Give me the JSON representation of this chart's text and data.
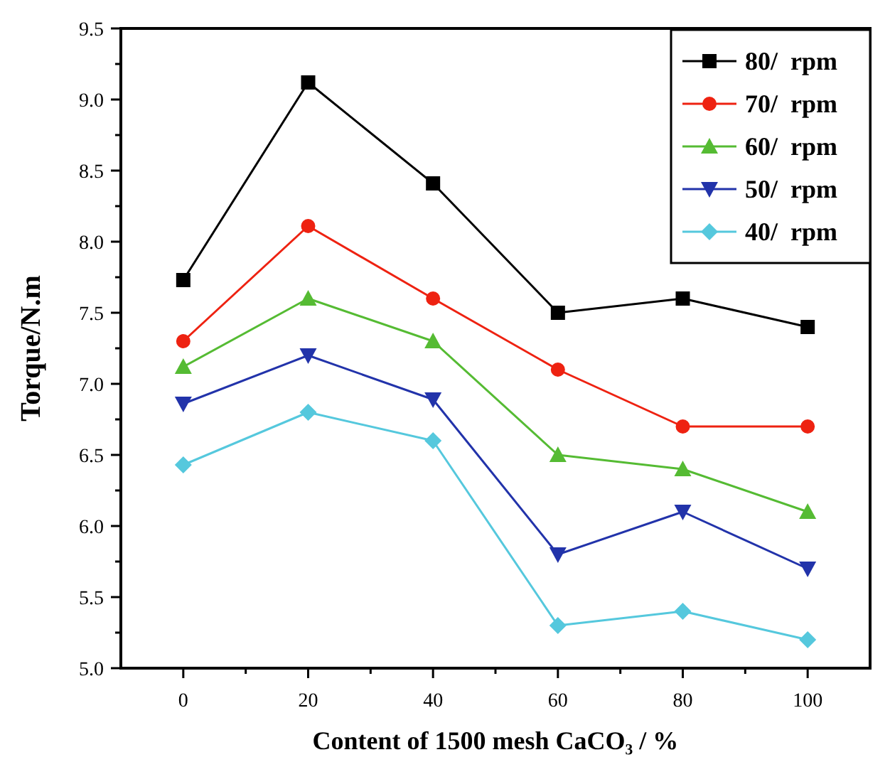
{
  "chart_data": {
    "type": "line",
    "xlabel": "Content of 1500 mesh CaCO₃ / %",
    "ylabel": "Torque/N.m",
    "x": [
      0,
      20,
      40,
      60,
      80,
      100
    ],
    "xlim": [
      -10,
      110
    ],
    "xticks": [
      0,
      {
        "value": 10,
        "label": null
      },
      20,
      {
        "value": 30,
        "label": null
      },
      40,
      {
        "value": 50,
        "label": null
      },
      60,
      {
        "value": 70,
        "label": null
      },
      80,
      {
        "value": 90,
        "label": null
      },
      100
    ],
    "ylim": [
      5,
      9.5
    ],
    "yticks": [
      {
        "value": 5,
        "label": "5.0"
      },
      {
        "value": 5.25,
        "label": null
      },
      {
        "value": 5.5,
        "label": "5.5"
      },
      {
        "value": 5.75,
        "label": null
      },
      {
        "value": 6,
        "label": "6.0"
      },
      {
        "value": 6.25,
        "label": null
      },
      {
        "value": 6.5,
        "label": "6.5"
      },
      {
        "value": 6.75,
        "label": null
      },
      {
        "value": 7,
        "label": "7.0"
      },
      {
        "value": 7.25,
        "label": null
      },
      {
        "value": 7.5,
        "label": "7.5"
      },
      {
        "value": 7.75,
        "label": null
      },
      {
        "value": 8,
        "label": "8.0"
      },
      {
        "value": 8.25,
        "label": null
      },
      {
        "value": 8.5,
        "label": "8.5"
      },
      {
        "value": 8.75,
        "label": null
      },
      {
        "value": 9,
        "label": "9.0"
      },
      {
        "value": 9.25,
        "label": null
      },
      {
        "value": 9.5,
        "label": "9.5"
      }
    ],
    "grid": false,
    "legend": "top right",
    "line_style": "solid",
    "series": [
      {
        "name": "80/  rpm",
        "color": "#000000",
        "marker": "square",
        "values": [
          7.73,
          9.12,
          8.41,
          7.5,
          7.6,
          7.4
        ]
      },
      {
        "name": "70/  rpm",
        "color": "#ee2211",
        "marker": "circle",
        "values": [
          7.3,
          8.11,
          7.6,
          7.1,
          6.7,
          6.7
        ]
      },
      {
        "name": "60/  rpm",
        "color": "#55bb33",
        "marker": "triangle",
        "values": [
          7.12,
          7.6,
          7.3,
          6.5,
          6.4,
          6.1
        ]
      },
      {
        "name": "50/  rpm",
        "color": "#2233aa",
        "marker": "triangle-down",
        "values": [
          6.86,
          7.2,
          6.89,
          5.8,
          6.1,
          5.7
        ]
      },
      {
        "name": "40/  rpm",
        "color": "#55c8dd",
        "marker": "diamond",
        "values": [
          6.43,
          6.8,
          6.6,
          5.3,
          5.4,
          5.2
        ]
      }
    ]
  }
}
